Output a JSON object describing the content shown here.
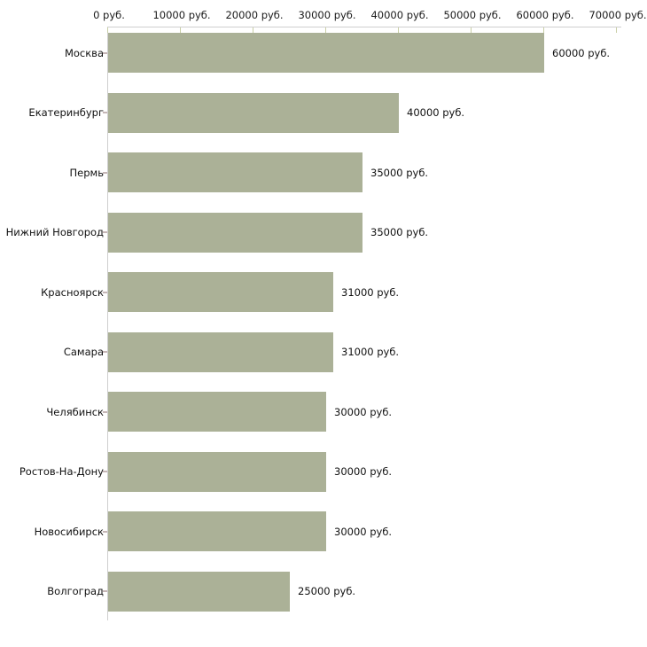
{
  "chart_data": {
    "type": "bar",
    "orientation": "horizontal",
    "title": "",
    "xlabel": "",
    "ylabel": "",
    "unit": "руб.",
    "categories": [
      "Москва",
      "Екатеринбург",
      "Пермь",
      "Нижний Новгород",
      "Красноярск",
      "Самара",
      "Челябинск",
      "Ростов-На-Дону",
      "Новосибирск",
      "Волгоград"
    ],
    "values": [
      60000,
      40000,
      35000,
      35000,
      31000,
      31000,
      30000,
      30000,
      30000,
      25000
    ],
    "value_labels": [
      "60000 руб.",
      "40000 руб.",
      "35000 руб.",
      "35000 руб.",
      "31000 руб.",
      "31000 руб.",
      "30000 руб.",
      "30000 руб.",
      "30000 руб.",
      "25000 руб."
    ],
    "x_ticks": [
      0,
      10000,
      20000,
      30000,
      40000,
      50000,
      60000,
      70000
    ],
    "x_tick_labels": [
      "0 руб.",
      "10000 руб.",
      "20000 руб.",
      "30000 руб.",
      "40000 руб.",
      "50000 руб.",
      "60000 руб.",
      "70000 руб."
    ],
    "xlim": [
      0,
      70000
    ],
    "grid": false,
    "legend": false,
    "colors": {
      "bar": "#abb197",
      "axis": "#cfcfcf",
      "x_tick": "#c9cfa6",
      "y_tick": "#c5b6b6",
      "text": "#111111"
    }
  }
}
